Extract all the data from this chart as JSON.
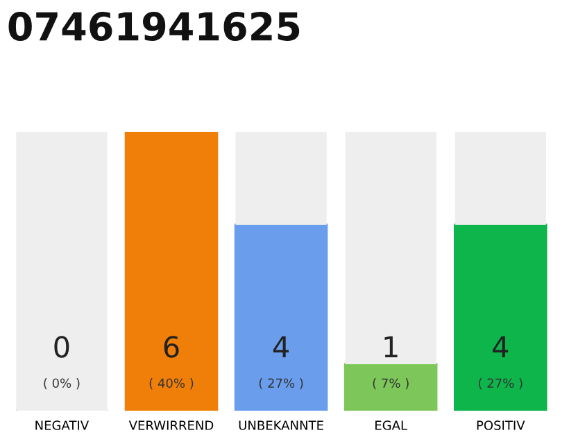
{
  "chart_data": {
    "type": "bar",
    "title": "07461941625",
    "stacked": true,
    "categories": [
      "NEGATIV",
      "VERWIRREND",
      "UNBEKANNTE",
      "EGAL",
      "POSITIV"
    ],
    "series": [
      {
        "colors": [
          "#555555",
          "#f07f09",
          "#6a9eed",
          "#7dc75a",
          "#0db54b"
        ],
        "values": [
          0,
          6,
          4,
          1,
          4
        ],
        "value_labels": [
          "0",
          "6",
          "4",
          "1",
          "4"
        ]
      },
      {
        "color": "#eeeeee",
        "values": [
          6,
          0,
          2,
          5,
          2
        ]
      }
    ],
    "ylim": [
      0,
      6
    ],
    "annotations": [
      "( 0% )",
      "( 40% )",
      "( 27% )",
      "( 7% )",
      "( 27% )"
    ]
  }
}
